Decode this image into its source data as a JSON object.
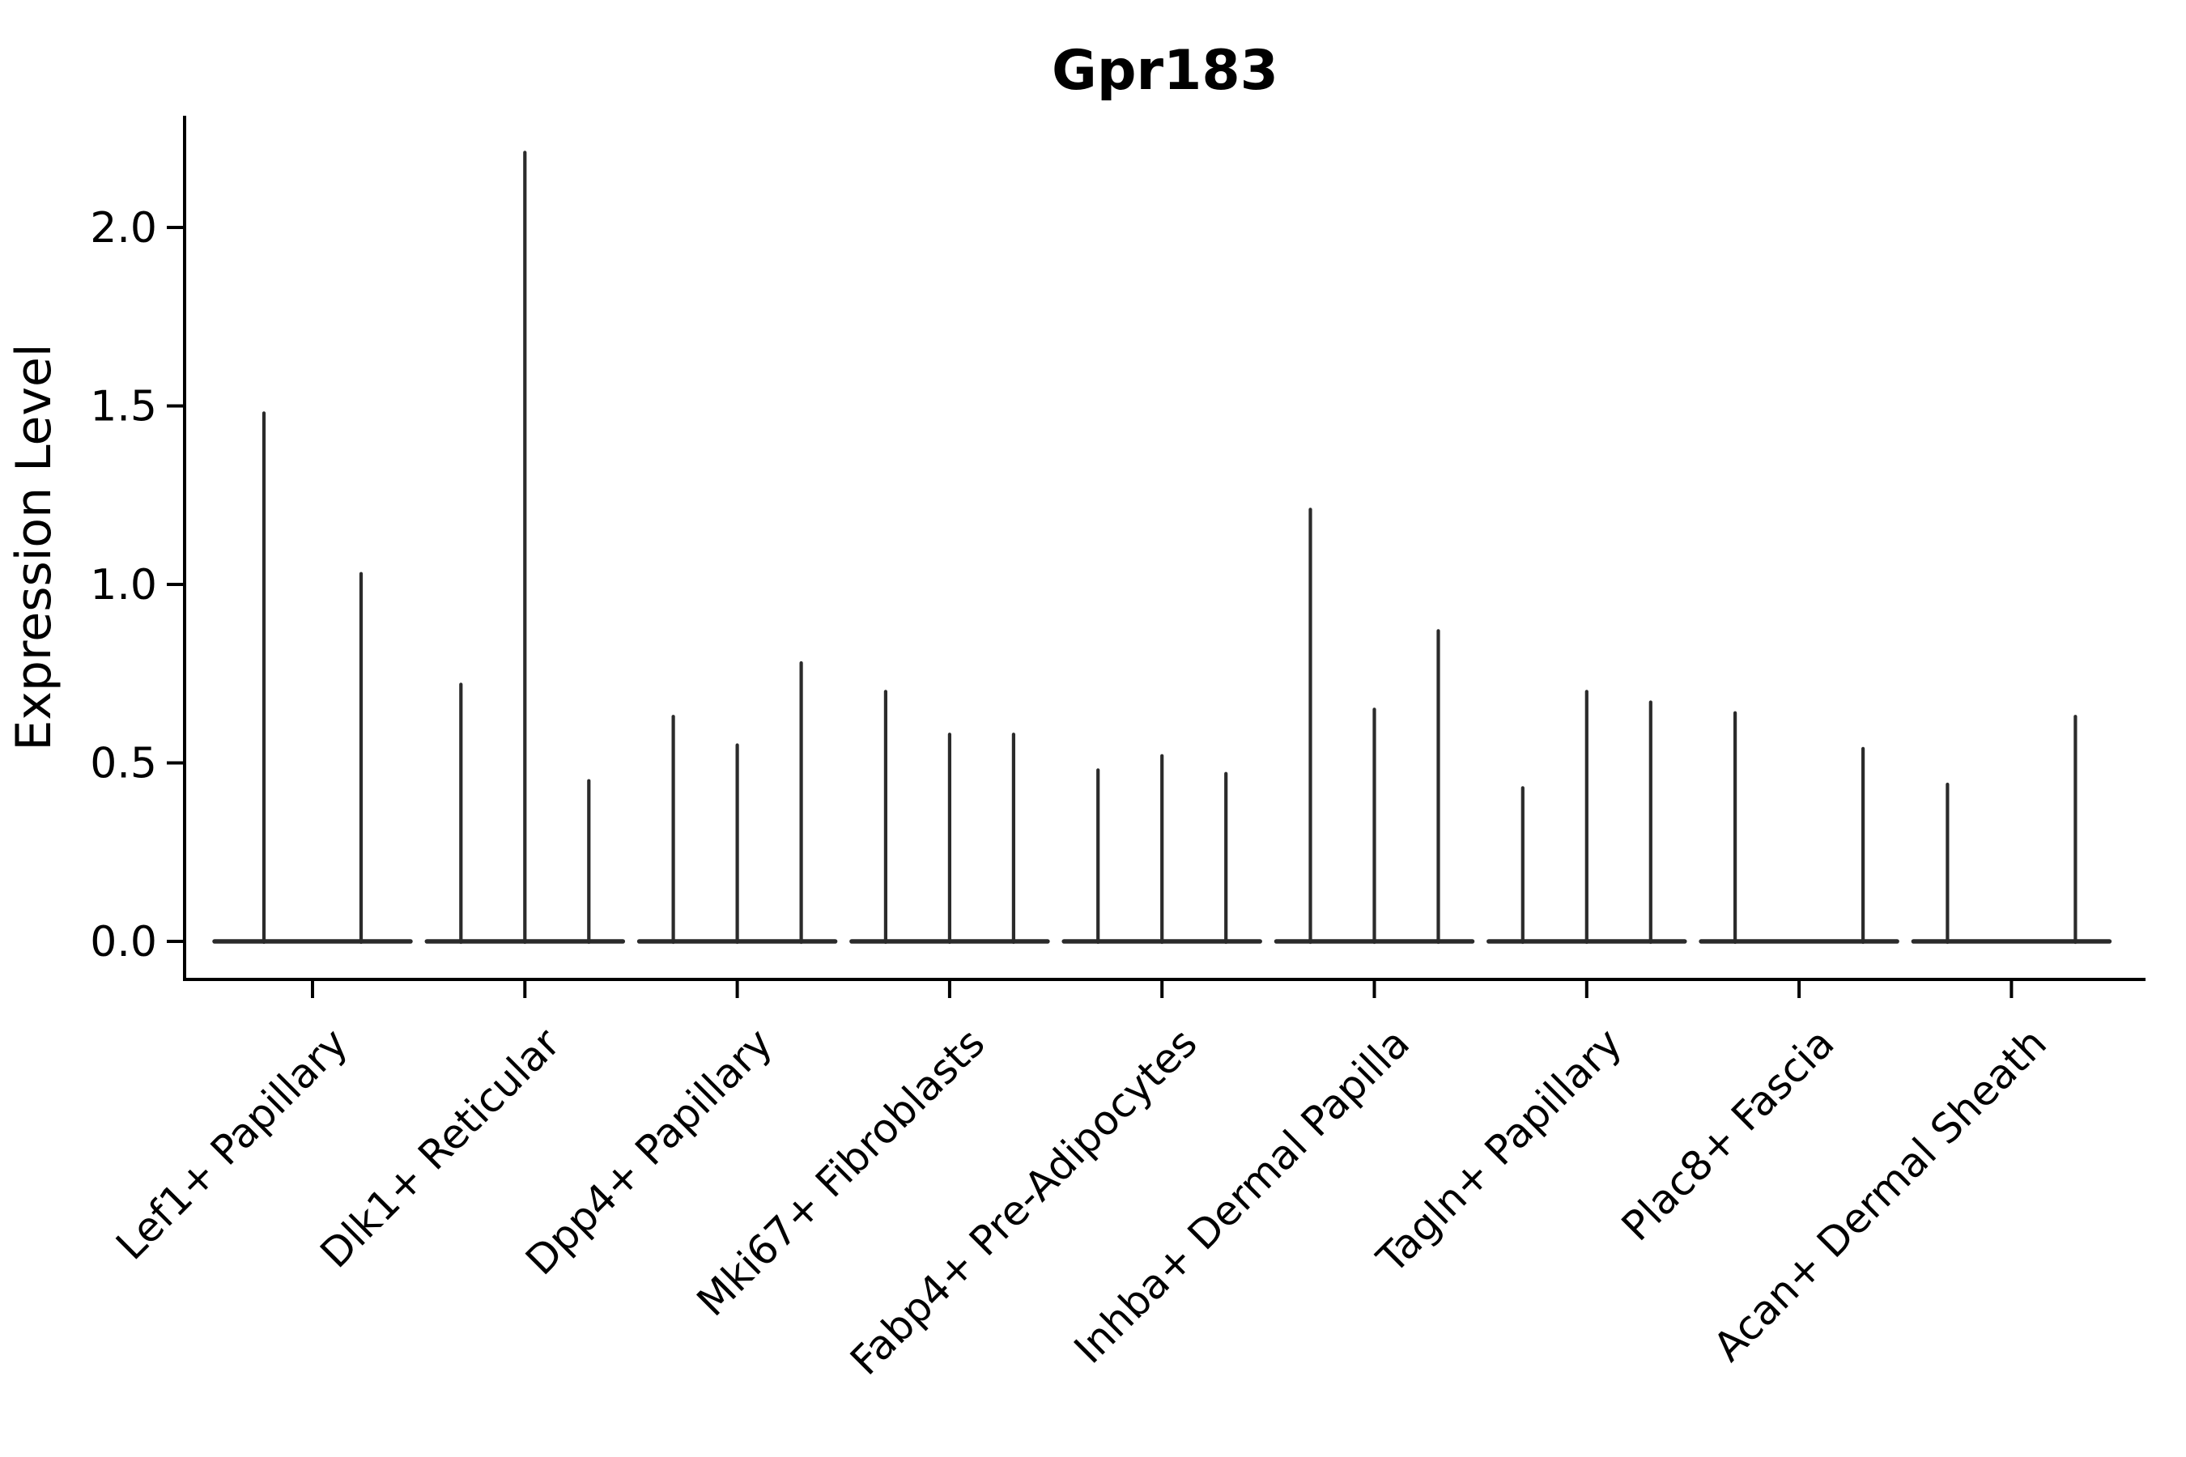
{
  "chart_data": {
    "type": "violin",
    "title": "Gpr183",
    "xlabel": "",
    "ylabel": "Expression Level",
    "yticks": [
      0.0,
      0.5,
      1.0,
      1.5,
      2.0
    ],
    "ylim": [
      -0.11,
      2.32
    ],
    "grid": false,
    "legend": "none",
    "description": "Single-cell expression violin plot; each category shows thin collapsed violins (flat baseline at 0) with narrow density spikes reaching the maximum expression value.",
    "categories": [
      "Lef1+ Papillary",
      "Dlk1+ Reticular",
      "Dpp4+ Papillary",
      "Mki67+ Fibroblasts",
      "Fabp4+ Pre-Adipocytes",
      "Inhba+ Dermal Papilla",
      "Tagln+ Papillary",
      "Plac8+ Fascia",
      "Acan+ Dermal Sheath"
    ],
    "groups": [
      {
        "category": "Lef1+ Papillary",
        "violins": [
          {
            "offset": -60,
            "max": 1.48
          },
          {
            "offset": 60,
            "max": 1.03
          }
        ]
      },
      {
        "category": "Dlk1+ Reticular",
        "violins": [
          {
            "offset": -79,
            "max": 0.72
          },
          {
            "offset": 0,
            "max": 2.21
          },
          {
            "offset": 79,
            "max": 0.45
          }
        ]
      },
      {
        "category": "Dpp4+ Papillary",
        "violins": [
          {
            "offset": -79,
            "max": 0.63
          },
          {
            "offset": 0,
            "max": 0.55
          },
          {
            "offset": 79,
            "max": 0.78
          }
        ]
      },
      {
        "category": "Mki67+ Fibroblasts",
        "violins": [
          {
            "offset": -79,
            "max": 0.7
          },
          {
            "offset": 0,
            "max": 0.58
          },
          {
            "offset": 79,
            "max": 0.58
          }
        ]
      },
      {
        "category": "Fabp4+ Pre-Adipocytes",
        "violins": [
          {
            "offset": -79,
            "max": 0.48
          },
          {
            "offset": 0,
            "max": 0.52
          },
          {
            "offset": 79,
            "max": 0.47
          }
        ]
      },
      {
        "category": "Inhba+ Dermal Papilla",
        "violins": [
          {
            "offset": -79,
            "max": 1.21
          },
          {
            "offset": 0,
            "max": 0.65
          },
          {
            "offset": 79,
            "max": 0.87
          }
        ]
      },
      {
        "category": "Tagln+ Papillary",
        "violins": [
          {
            "offset": -79,
            "max": 0.43
          },
          {
            "offset": 0,
            "max": 0.7
          },
          {
            "offset": 79,
            "max": 0.67
          }
        ]
      },
      {
        "category": "Plac8+ Fascia",
        "violins": [
          {
            "offset": -79,
            "max": 0.64
          },
          {
            "offset": 79,
            "max": 0.54
          }
        ]
      },
      {
        "category": "Acan+ Dermal Sheath",
        "violins": [
          {
            "offset": -79,
            "max": 0.44
          },
          {
            "offset": 79,
            "max": 0.63
          }
        ]
      }
    ],
    "colors": {
      "violin_line": "#2b2b2b",
      "axis": "#000000",
      "text": "#000000",
      "background": "#ffffff"
    }
  }
}
